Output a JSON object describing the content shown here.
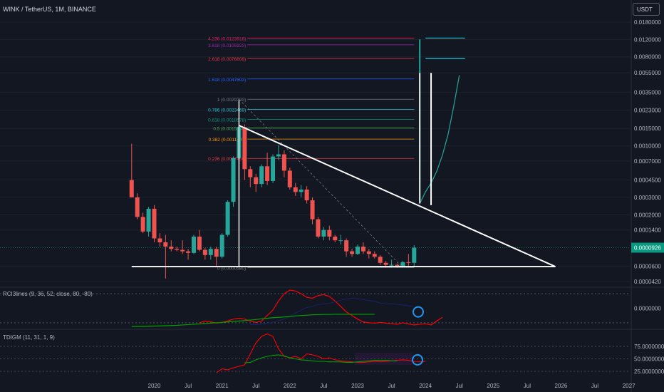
{
  "header": {
    "title": "WINK / TetherUS, 1M, BINANCE",
    "currency_button": "USDT"
  },
  "colors": {
    "up": "#26a69a",
    "down": "#ef5350",
    "trendline": "#ffffff",
    "rci_red": "#ff0000",
    "rci_green": "#00a000",
    "rci_navy": "#1a237e",
    "annotation": "#2196f3",
    "cyan": "#26c6da"
  },
  "chart_data": [
    {
      "type": "candlestick",
      "title": "WINK / TetherUS, 1M, BINANCE",
      "price_scale": "log",
      "y_ticks": [
        "0.0180000",
        "0.0120000",
        "0.0080000",
        "0.0055000",
        "0.0035000",
        "0.0023000",
        "0.0015000",
        "0.0010000",
        "0.0007000",
        "0.0004500",
        "0.0003000",
        "0.0002000",
        "0.0001400",
        "0.0000600",
        "0.0000420"
      ],
      "x_ticks": [
        "2020",
        "Jul",
        "2021",
        "Jul",
        "2022",
        "Jul",
        "2023",
        "Jul",
        "2024",
        "Jul",
        "2025",
        "Jul",
        "2026",
        "Jul",
        "2027"
      ],
      "last_price": "0.0000926",
      "candles": [
        {
          "t": "2019-09",
          "o": 0.00045,
          "h": 0.00105,
          "l": 0.0003,
          "c": 0.0003
        },
        {
          "t": "2019-10",
          "o": 0.0003,
          "h": 0.00033,
          "l": 0.00018,
          "c": 0.00019
        },
        {
          "t": "2019-11",
          "o": 0.00019,
          "h": 0.00021,
          "l": 0.00013,
          "c": 0.000135
        },
        {
          "t": "2019-12",
          "o": 0.000135,
          "h": 0.00024,
          "l": 0.00012,
          "c": 0.00023
        },
        {
          "t": "2020-01",
          "o": 0.00023,
          "h": 0.00025,
          "l": 0.000105,
          "c": 0.000115
        },
        {
          "t": "2020-02",
          "o": 0.000115,
          "h": 0.00013,
          "l": 9.5e-05,
          "c": 0.000105
        },
        {
          "t": "2020-03",
          "o": 0.000105,
          "h": 0.000125,
          "l": 4.5e-05,
          "c": 9.5e-05
        },
        {
          "t": "2020-04",
          "o": 9.5e-05,
          "h": 0.00011,
          "l": 8.5e-05,
          "c": 9e-05
        },
        {
          "t": "2020-05",
          "o": 9e-05,
          "h": 9.5e-05,
          "l": 8.5e-05,
          "c": 8.8e-05
        },
        {
          "t": "2020-06",
          "o": 8.8e-05,
          "h": 0.00011,
          "l": 8e-05,
          "c": 8.5e-05
        },
        {
          "t": "2020-07",
          "o": 8.5e-05,
          "h": 9e-05,
          "l": 7e-05,
          "c": 8.2e-05
        },
        {
          "t": "2020-08",
          "o": 8.2e-05,
          "h": 0.000125,
          "l": 8e-05,
          "c": 0.00012
        },
        {
          "t": "2020-09",
          "o": 0.00012,
          "h": 0.00014,
          "l": 8.5e-05,
          "c": 8.8e-05
        },
        {
          "t": "2020-10",
          "o": 8.8e-05,
          "h": 9.2e-05,
          "l": 7e-05,
          "c": 7.8e-05
        },
        {
          "t": "2020-11",
          "o": 7.8e-05,
          "h": 9.5e-05,
          "l": 7e-05,
          "c": 9e-05
        },
        {
          "t": "2020-12",
          "o": 9e-05,
          "h": 9.5e-05,
          "l": 6e-05,
          "c": 7.5e-05
        },
        {
          "t": "2021-01",
          "o": 7.5e-05,
          "h": 0.00013,
          "l": 7.2e-05,
          "c": 0.000125
        },
        {
          "t": "2021-02",
          "o": 0.000125,
          "h": 0.00028,
          "l": 0.00012,
          "c": 0.00027
        },
        {
          "t": "2021-03",
          "o": 0.00027,
          "h": 0.00078,
          "l": 0.00024,
          "c": 0.00075
        },
        {
          "t": "2021-04",
          "o": 0.00075,
          "h": 0.00165,
          "l": 0.00068,
          "c": 0.00155
        },
        {
          "t": "2021-05",
          "o": 0.00155,
          "h": 0.00165,
          "l": 0.00045,
          "c": 0.00058
        },
        {
          "t": "2021-06",
          "o": 0.00058,
          "h": 0.00062,
          "l": 0.00038,
          "c": 0.00048
        },
        {
          "t": "2021-07",
          "o": 0.00048,
          "h": 0.00052,
          "l": 0.00034,
          "c": 0.00041
        },
        {
          "t": "2021-08",
          "o": 0.00041,
          "h": 0.00065,
          "l": 0.00038,
          "c": 0.00062
        },
        {
          "t": "2021-09",
          "o": 0.00062,
          "h": 0.00085,
          "l": 0.0004,
          "c": 0.00044
        },
        {
          "t": "2021-10",
          "o": 0.00044,
          "h": 0.00082,
          "l": 0.00042,
          "c": 0.00078
        },
        {
          "t": "2021-11",
          "o": 0.00078,
          "h": 0.00102,
          "l": 0.00072,
          "c": 0.00082
        },
        {
          "t": "2021-12",
          "o": 0.00082,
          "h": 0.0009,
          "l": 0.00048,
          "c": 0.00056
        },
        {
          "t": "2022-01",
          "o": 0.00056,
          "h": 0.0006,
          "l": 0.00036,
          "c": 0.00038
        },
        {
          "t": "2022-02",
          "o": 0.00038,
          "h": 0.00042,
          "l": 0.00031,
          "c": 0.00034
        },
        {
          "t": "2022-03",
          "o": 0.00034,
          "h": 0.0004,
          "l": 0.0003,
          "c": 0.00036
        },
        {
          "t": "2022-04",
          "o": 0.00036,
          "h": 0.00039,
          "l": 0.00026,
          "c": 0.00028
        },
        {
          "t": "2022-05",
          "o": 0.00028,
          "h": 0.0003,
          "l": 0.00016,
          "c": 0.00018
        },
        {
          "t": "2022-06",
          "o": 0.00018,
          "h": 0.00019,
          "l": 0.000115,
          "c": 0.00012
        },
        {
          "t": "2022-07",
          "o": 0.00012,
          "h": 0.00015,
          "l": 0.00011,
          "c": 0.00014
        },
        {
          "t": "2022-08",
          "o": 0.00014,
          "h": 0.000155,
          "l": 0.00011,
          "c": 0.00012
        },
        {
          "t": "2022-09",
          "o": 0.00012,
          "h": 0.000125,
          "l": 0.000105,
          "c": 0.00011
        },
        {
          "t": "2022-10",
          "o": 0.00011,
          "h": 0.000125,
          "l": 0.0001,
          "c": 0.00011
        },
        {
          "t": "2022-11",
          "o": 0.00011,
          "h": 0.000115,
          "l": 7.5e-05,
          "c": 8.5e-05
        },
        {
          "t": "2022-12",
          "o": 8.5e-05,
          "h": 9e-05,
          "l": 7.5e-05,
          "c": 8e-05
        },
        {
          "t": "2023-01",
          "o": 8e-05,
          "h": 0.0001,
          "l": 7.8e-05,
          "c": 9.5e-05
        },
        {
          "t": "2023-02",
          "o": 9.5e-05,
          "h": 0.000105,
          "l": 8e-05,
          "c": 8.5e-05
        },
        {
          "t": "2023-03",
          "o": 8.5e-05,
          "h": 9e-05,
          "l": 7.2e-05,
          "c": 8e-05
        },
        {
          "t": "2023-04",
          "o": 8e-05,
          "h": 8.5e-05,
          "l": 7.2e-05,
          "c": 7.5e-05
        },
        {
          "t": "2023-05",
          "o": 7.5e-05,
          "h": 7.8e-05,
          "l": 6.2e-05,
          "c": 6.5e-05
        },
        {
          "t": "2023-06",
          "o": 6.5e-05,
          "h": 6.8e-05,
          "l": 5.8e-05,
          "c": 6.2e-05
        },
        {
          "t": "2023-07",
          "o": 6.2e-05,
          "h": 7e-05,
          "l": 5.8e-05,
          "c": 6.2e-05
        },
        {
          "t": "2023-08",
          "o": 6.2e-05,
          "h": 6.4e-05,
          "l": 5.8e-05,
          "c": 6e-05
        },
        {
          "t": "2023-09",
          "o": 6e-05,
          "h": 6.8e-05,
          "l": 5.8e-05,
          "c": 6.6e-05
        },
        {
          "t": "2023-10",
          "o": 6.6e-05,
          "h": 8e-05,
          "l": 6e-05,
          "c": 6.5e-05
        },
        {
          "t": "2023-11",
          "o": 6.5e-05,
          "h": 9.8e-05,
          "l": 6e-05,
          "c": 9.26e-05
        }
      ],
      "fib_levels": [
        {
          "label": "4.236 (0.0123916)",
          "value": 0.0123916,
          "color": "#e91e63"
        },
        {
          "label": "3.618 (0.0105923)",
          "value": 0.0105923,
          "color": "#9c27b0"
        },
        {
          "label": "2.618 (0.0076808)",
          "value": 0.0076808,
          "color": "#f23645"
        },
        {
          "label": "1.618 (0.0047693)",
          "value": 0.0047693,
          "color": "#2962ff"
        },
        {
          "label": "1 (0.0029700)",
          "value": 0.00297,
          "color": "#787b86"
        },
        {
          "label": "0.786 (0.0023469)",
          "value": 0.0023469,
          "color": "#26c6da"
        },
        {
          "label": "0.618 (0.0018578)",
          "value": 0.0018578,
          "color": "#089981"
        },
        {
          "label": "0.5 (0.0015144)",
          "value": 0.0015144,
          "color": "#4caf50"
        },
        {
          "label": "0.382 (0.0011707)",
          "value": 0.0011707,
          "color": "#ff9800"
        },
        {
          "label": "0.236 (0.0007456)",
          "value": 0.0007456,
          "color": "#f23645"
        },
        {
          "label": "0 (0.0000580)",
          "value": 5.8e-05,
          "color": "#787b86"
        }
      ],
      "projection_candles": [
        {
          "t": "2023-12",
          "o": 9.3e-05,
          "h": 0.012,
          "l": 0.00028,
          "c": 0.0057
        },
        {
          "t": "2024-02",
          "o": 0.00028,
          "h": 0.0055,
          "l": 0.00025,
          "c": 0.005
        }
      ],
      "projection_path": [
        [
          "2023-12",
          0.00026
        ],
        [
          "2024-01",
          0.00034
        ],
        [
          "2024-02",
          0.00042
        ],
        [
          "2024-03",
          0.00055
        ],
        [
          "2024-04",
          0.0008
        ],
        [
          "2024-05",
          0.0013
        ],
        [
          "2024-06",
          0.0025
        ],
        [
          "2024-07",
          0.0052
        ]
      ],
      "annotations": [
        "descending triangle",
        "fibonacci extension"
      ]
    },
    {
      "type": "line",
      "title": "RCI3lines (9, 36, 52, close, 80, -80)",
      "y_ticks": [
        "0.0000000"
      ],
      "series": [
        {
          "values": [
            -80,
            -70,
            -75,
            -82,
            -78,
            -70,
            -60,
            -55,
            -60,
            -70,
            -78,
            -70,
            -40,
            -10,
            40,
            80,
            100,
            95,
            80,
            60,
            55,
            70,
            75,
            65,
            40,
            10,
            -20,
            -40,
            -60,
            -75,
            -80,
            -82,
            -78,
            -82,
            -85,
            -88,
            -80,
            -86,
            -92,
            -88,
            -85,
            -92,
            -70,
            -50
          ]
        },
        {
          "values": [
            -90,
            -90,
            -85,
            -80,
            -70,
            -60,
            -40,
            -20,
            0,
            10,
            20,
            25,
            30,
            40,
            50,
            55,
            52,
            45,
            40,
            30,
            25,
            25,
            20,
            15,
            10
          ]
        },
        {
          "values": [
            -100,
            -100,
            -100,
            -99,
            -98,
            -97,
            -96,
            -95,
            -94,
            -92,
            -90,
            -88,
            -86,
            -84,
            -82,
            -80,
            -78,
            -75,
            -72,
            -70,
            -68,
            -65,
            -62,
            -58,
            -55,
            -52,
            -50,
            -48,
            -45,
            -42,
            -40,
            -38,
            -36,
            -35,
            -34,
            -34,
            -33,
            -33,
            -33,
            -33,
            -33,
            -33,
            -33,
            -33
          ]
        }
      ]
    },
    {
      "type": "line",
      "title": "TDIGM (11, 31, 1, 9)",
      "y_ticks": [
        "75.0000000",
        "50.0000000",
        "25.0000000"
      ],
      "series": [
        {
          "values": [
            22,
            30,
            28,
            32,
            35,
            38,
            60,
            82,
            95,
            100,
            95,
            70,
            55,
            52,
            55,
            50,
            60,
            58,
            55,
            50,
            52,
            48,
            46,
            45,
            44,
            43,
            43,
            44,
            45,
            44,
            45,
            46,
            47,
            48,
            47,
            45,
            44,
            45
          ]
        },
        {
          "values": [
            42,
            43,
            48,
            52,
            55,
            57,
            58,
            56,
            52,
            50,
            48,
            47,
            46,
            45,
            45,
            44,
            44,
            44,
            43,
            43,
            44,
            45,
            46,
            47,
            47,
            47,
            46,
            46
          ]
        }
      ]
    }
  ]
}
